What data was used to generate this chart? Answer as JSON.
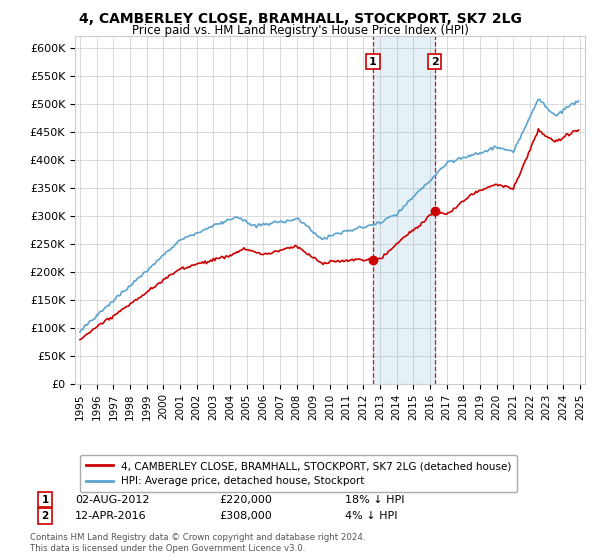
{
  "title": "4, CAMBERLEY CLOSE, BRAMHALL, STOCKPORT, SK7 2LG",
  "subtitle": "Price paid vs. HM Land Registry's House Price Index (HPI)",
  "ylabel_ticks": [
    "£0",
    "£50K",
    "£100K",
    "£150K",
    "£200K",
    "£250K",
    "£300K",
    "£350K",
    "£400K",
    "£450K",
    "£500K",
    "£550K",
    "£600K"
  ],
  "ylim": [
    0,
    620000
  ],
  "xlim_start": 1994.7,
  "xlim_end": 2025.3,
  "hpi_color": "#5BA4CF",
  "price_color": "#CC0000",
  "marker_color": "#CC0000",
  "sale1_x": 2012.58,
  "sale1_y": 220000,
  "sale1_label": "1",
  "sale2_x": 2016.28,
  "sale2_y": 308000,
  "sale2_label": "2",
  "shade_xstart": 2012.58,
  "shade_xend": 2016.28,
  "vline1_x": 2012.58,
  "vline2_x": 2016.28,
  "legend_line1": "4, CAMBERLEY CLOSE, BRAMHALL, STOCKPORT, SK7 2LG (detached house)",
  "legend_line2": "HPI: Average price, detached house, Stockport",
  "annot1_num": "1",
  "annot1_date": "02-AUG-2012",
  "annot1_price": "£220,000",
  "annot1_hpi": "18% ↓ HPI",
  "annot2_num": "2",
  "annot2_date": "12-APR-2016",
  "annot2_price": "£308,000",
  "annot2_hpi": "4% ↓ HPI",
  "footnote": "Contains HM Land Registry data © Crown copyright and database right 2024.\nThis data is licensed under the Open Government Licence v3.0.",
  "background_color": "#ffffff",
  "grid_color": "#cccccc"
}
